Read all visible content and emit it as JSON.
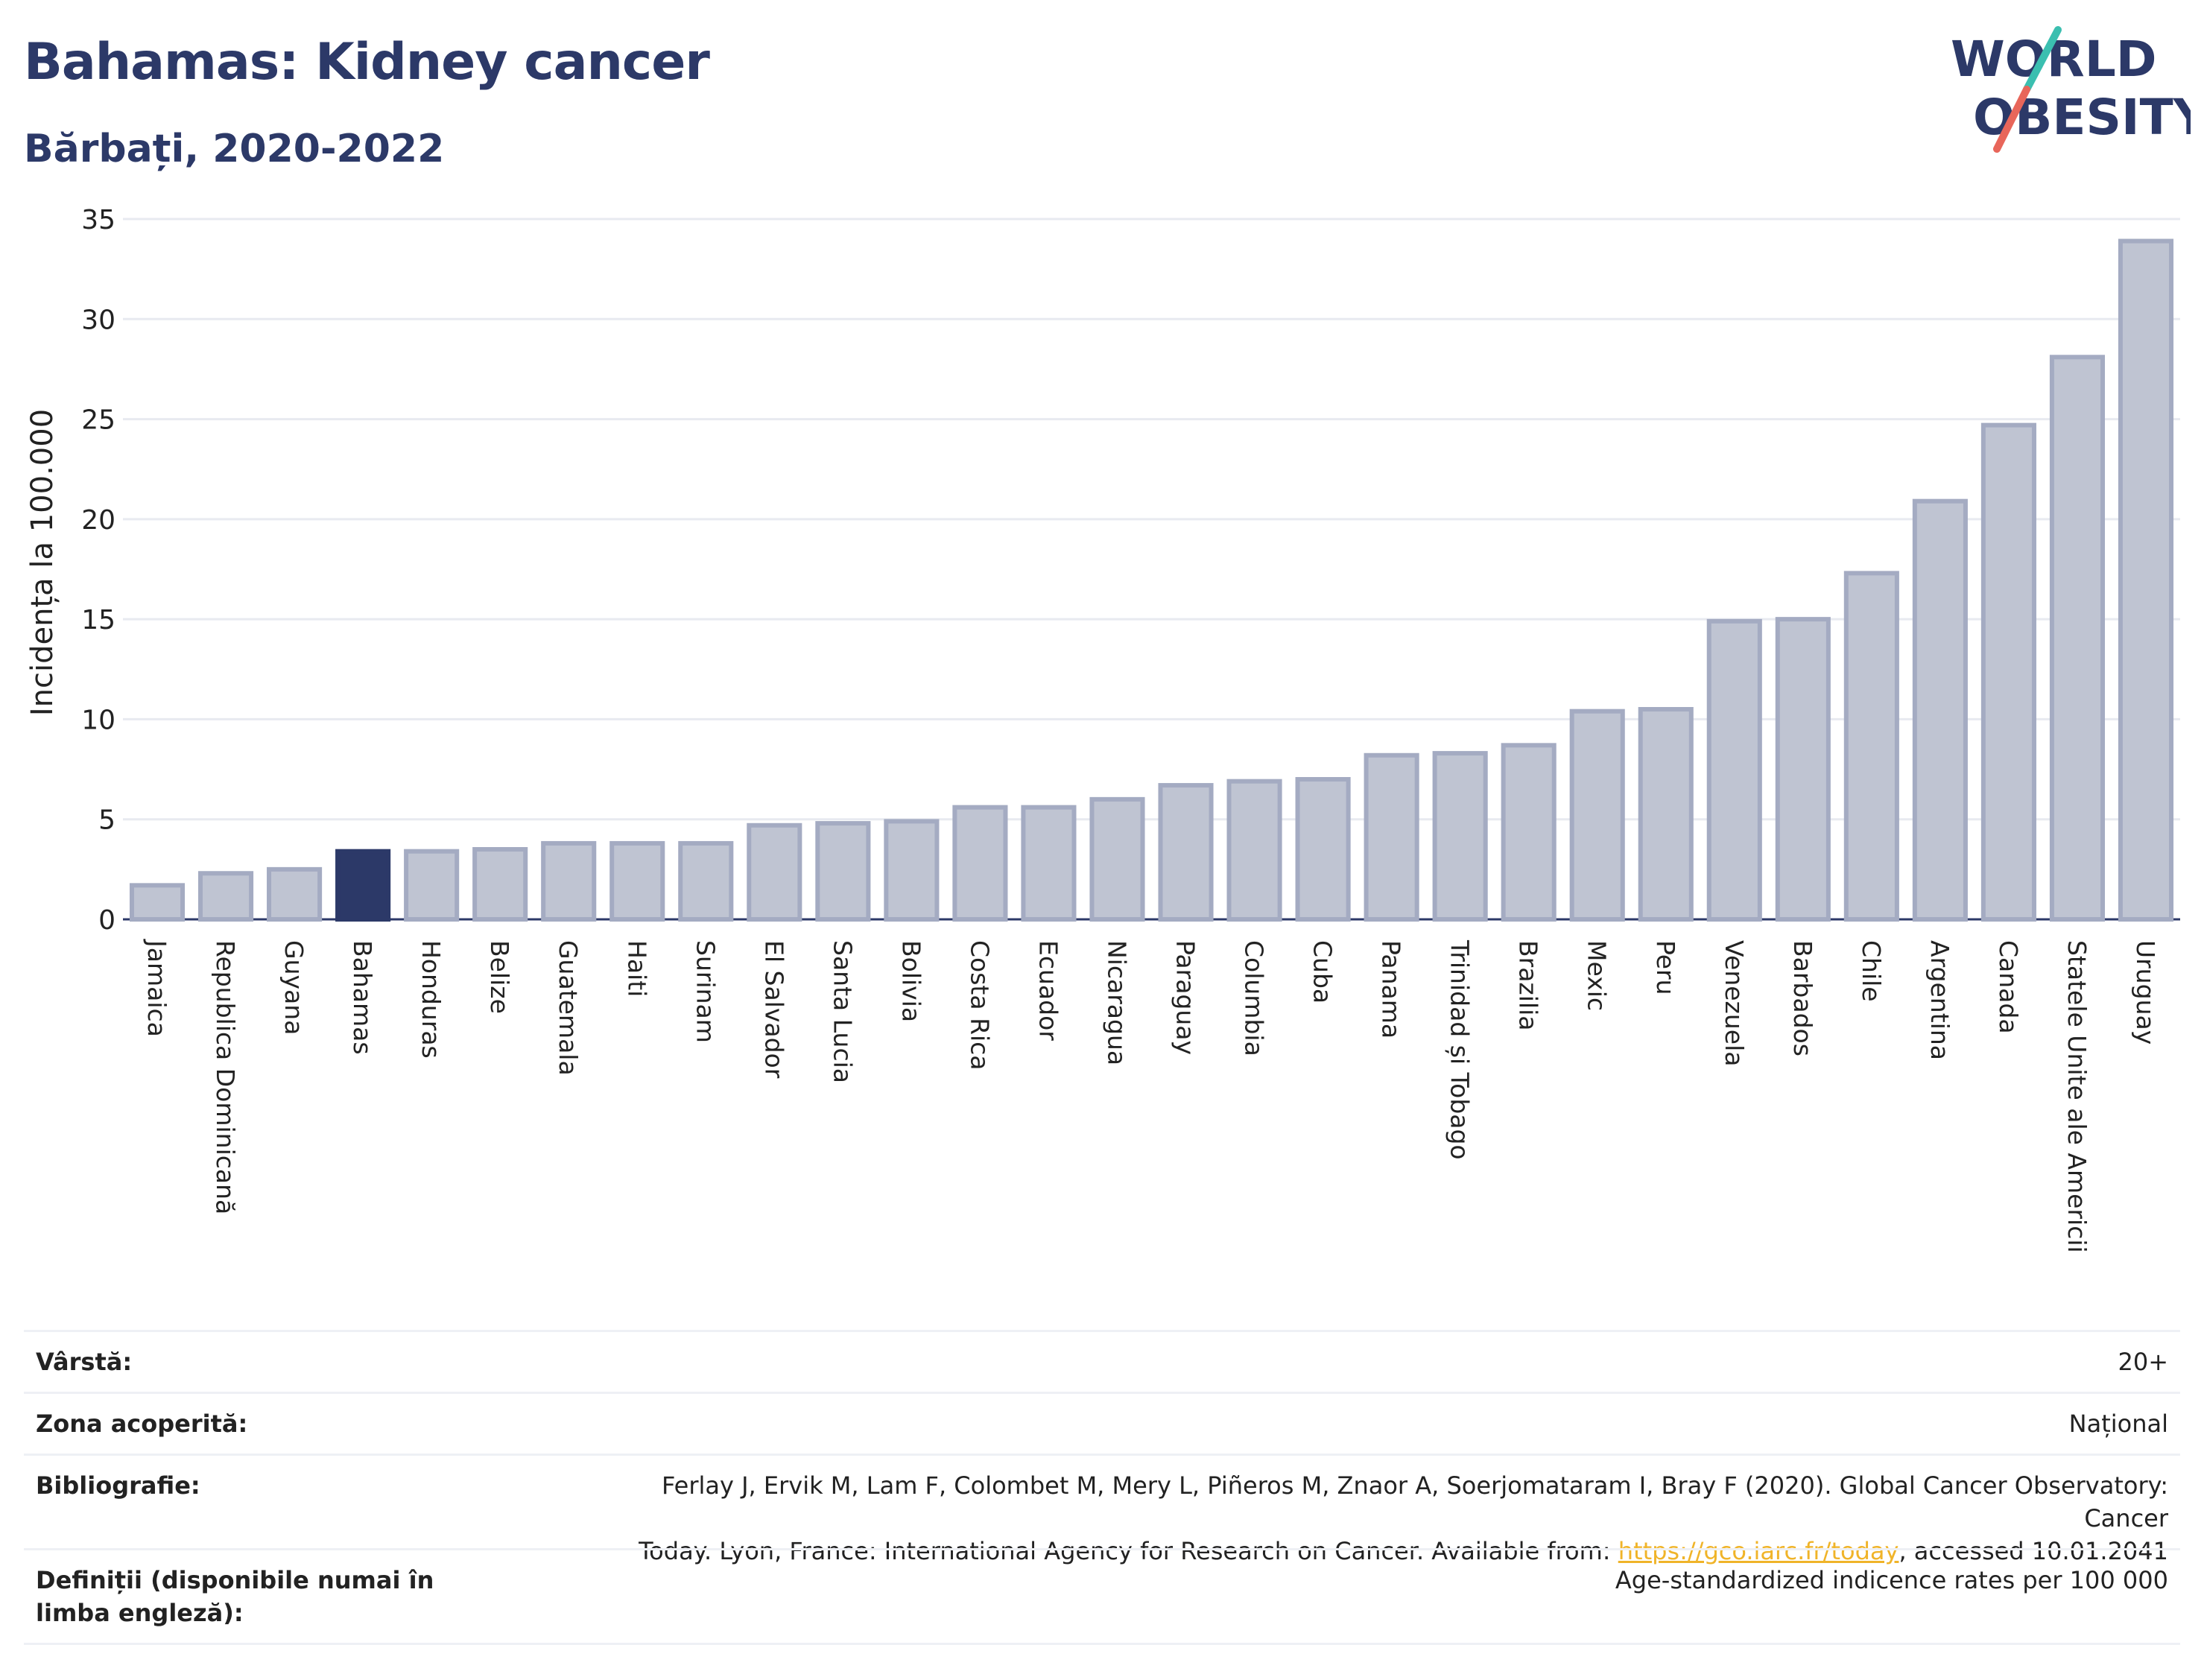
{
  "header": {
    "title": "Bahamas: Kidney cancer",
    "subtitle": "Bărbați, 2020-2022"
  },
  "logo": {
    "line1": "WORLD",
    "line2": "OBESITY",
    "text_color": "#2c3968",
    "slash_colors": [
      "#3bbfb0",
      "#e8665a"
    ]
  },
  "chart_data": {
    "type": "bar",
    "title": "Bahamas: Kidney cancer",
    "subtitle": "Bărbați, 2020-2022",
    "ylabel": "Incidența la 100.000",
    "xlabel": "",
    "ylim": [
      0,
      35
    ],
    "yticks": [
      0,
      5,
      10,
      15,
      20,
      25,
      30,
      35
    ],
    "grid": true,
    "highlight_category": "Bahamas",
    "colors": {
      "bar": "#bfc4d2",
      "bar_edge": "#a4abc2",
      "highlight": "#2c3968"
    },
    "categories": [
      "Jamaica",
      "Republica Dominicană",
      "Guyana",
      "Bahamas",
      "Honduras",
      "Belize",
      "Guatemala",
      "Haiti",
      "Surinam",
      "El Salvador",
      "Santa Lucia",
      "Bolivia",
      "Costa Rica",
      "Ecuador",
      "Nicaragua",
      "Paraguay",
      "Columbia",
      "Cuba",
      "Panama",
      "Trinidad și Tobago",
      "Brazilia",
      "Mexic",
      "Peru",
      "Venezuela",
      "Barbados",
      "Chile",
      "Argentina",
      "Canada",
      "Statele Unite ale Americii",
      "Uruguay"
    ],
    "values": [
      1.7,
      2.3,
      2.5,
      3.4,
      3.4,
      3.5,
      3.8,
      3.8,
      3.8,
      4.7,
      4.8,
      4.9,
      5.6,
      5.6,
      6.0,
      6.7,
      6.9,
      7.0,
      8.2,
      8.3,
      8.7,
      10.4,
      10.5,
      14.9,
      15.0,
      17.3,
      20.9,
      24.7,
      28.1,
      33.9
    ]
  },
  "info": {
    "age_label": "Vârstă:",
    "age_value": "20+",
    "area_label": "Zona acoperită:",
    "area_value": "Național",
    "biblio_label": "Bibliografie:",
    "biblio_text_1": "Ferlay J, Ervik M, Lam F, Colombet M, Mery L, Piñeros M, Znaor A, Soerjomataram I, Bray F (2020). Global Cancer Observatory: Cancer",
    "biblio_text_2": "Today. Lyon, France: International Agency for Research on Cancer. Available from: ",
    "biblio_link": "https://gco.iarc.fr/today",
    "biblio_text_3": ", accessed 10.01.2041",
    "def_label": "Definiții (disponibile numai în limba engleză):",
    "def_value": "Age-standardized indicence rates per 100 000"
  }
}
